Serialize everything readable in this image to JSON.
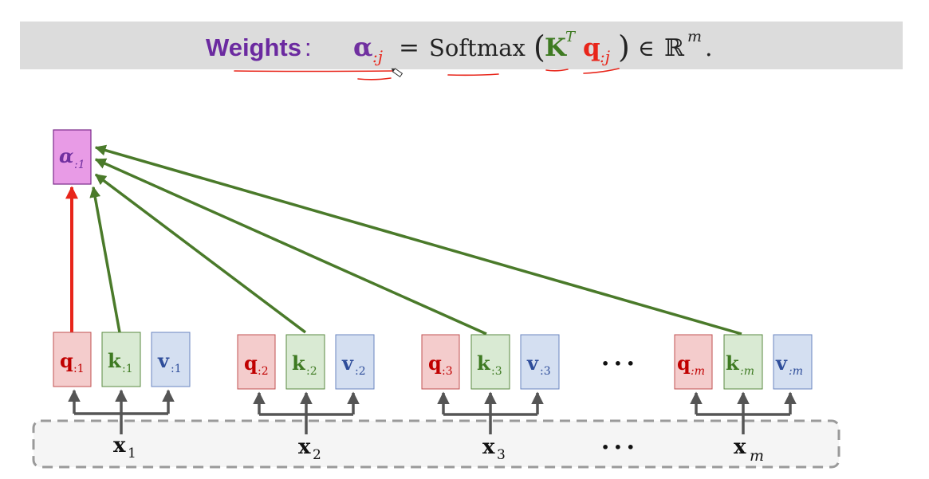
{
  "formula": {
    "label": "Weights",
    "colon": ":",
    "alpha": "α",
    "alpha_sub": ":j",
    "equals": "=",
    "softmax": "Softmax",
    "open_paren": "(",
    "K": "K",
    "K_sup": "T",
    "q": "q",
    "q_sub": ":j",
    "close_paren": ")",
    "in_symbol": "∈",
    "reals": "ℝ",
    "reals_sup": "m",
    "period": "."
  },
  "output": {
    "symbol": "α",
    "sub": ":1"
  },
  "columns": [
    {
      "q_sub": ":1",
      "k_sub": ":1",
      "v_sub": ":1",
      "x_sub": "1"
    },
    {
      "q_sub": ":2",
      "k_sub": ":2",
      "v_sub": ":2",
      "x_sub": "2"
    },
    {
      "q_sub": ":3",
      "k_sub": ":3",
      "v_sub": ":3",
      "x_sub": "3"
    },
    {
      "q_sub": ":m",
      "k_sub": ":m",
      "v_sub": ":m",
      "x_sub": "m"
    }
  ],
  "symbols": {
    "q": "q",
    "k": "k",
    "v": "v",
    "x": "x"
  },
  "ellipsis": "• • •",
  "colors": {
    "weights_label": "#6b2aa0",
    "alpha": "#7030a0",
    "query": "#c00000",
    "key": "#3e7a22",
    "value": "#2e4d9a",
    "query_fill": "#f4cccc",
    "key_fill": "#d9ead3",
    "value_fill": "#d4dff1",
    "alpha_fill": "#e89be6",
    "red_arrow": "#e8251a",
    "green_arrow": "#4a7a2a",
    "gray_arrow": "#555555",
    "dashed_border": "#9a9a9a"
  }
}
